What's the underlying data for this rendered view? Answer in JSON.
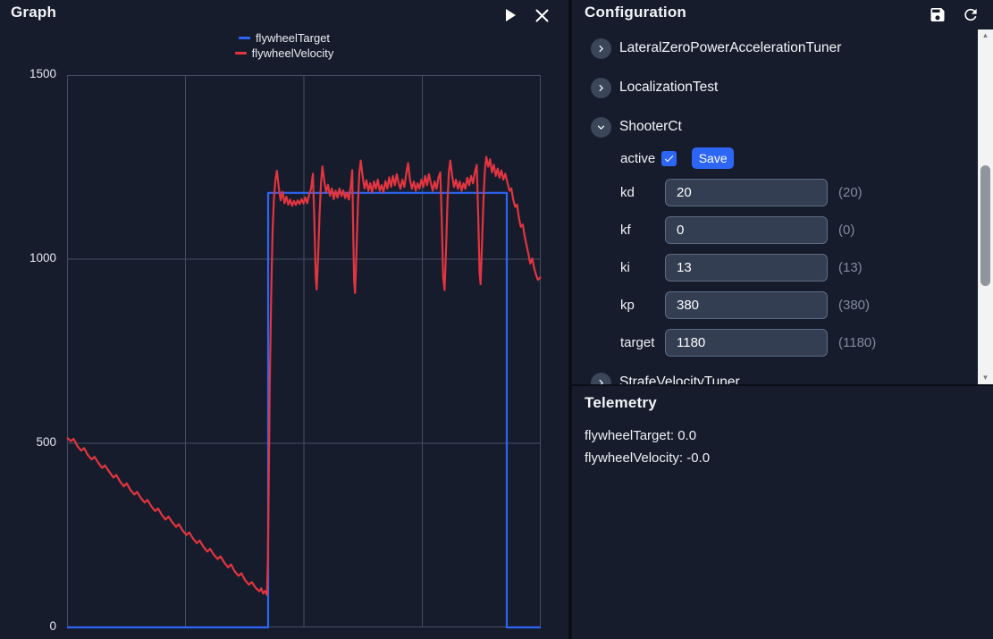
{
  "graph": {
    "title": "Graph",
    "y_tick_labels": [
      "1500",
      "1000",
      "500",
      "0"
    ]
  },
  "chart_data": {
    "type": "line",
    "title": "",
    "xlabel": "",
    "ylabel": "",
    "ylim": [
      0,
      1500
    ],
    "y_ticks": [
      0,
      500,
      1000,
      1500
    ],
    "grid": true,
    "legend_position": "top-center",
    "x_axis": "time (unlabeled, normalized 0-1)",
    "series": [
      {
        "name": "flywheelTarget",
        "color": "#2d66f5",
        "points": [
          [
            0,
            0
          ],
          [
            0.4245,
            0
          ],
          [
            0.4245,
            1180
          ],
          [
            0.9283,
            1180
          ],
          [
            0.9283,
            0
          ],
          [
            1,
            0
          ]
        ]
      },
      {
        "name": "flywheelVelocity",
        "color": "#e23540",
        "points": [
          [
            0.0,
            515
          ],
          [
            0.008,
            506
          ],
          [
            0.014,
            512
          ],
          [
            0.022,
            492
          ],
          [
            0.03,
            480
          ],
          [
            0.036,
            487
          ],
          [
            0.044,
            468
          ],
          [
            0.052,
            456
          ],
          [
            0.058,
            463
          ],
          [
            0.066,
            447
          ],
          [
            0.074,
            433
          ],
          [
            0.08,
            440
          ],
          [
            0.09,
            421
          ],
          [
            0.098,
            407
          ],
          [
            0.104,
            414
          ],
          [
            0.112,
            396
          ],
          [
            0.12,
            383
          ],
          [
            0.126,
            391
          ],
          [
            0.134,
            373
          ],
          [
            0.142,
            361
          ],
          [
            0.148,
            368
          ],
          [
            0.156,
            351
          ],
          [
            0.164,
            339
          ],
          [
            0.17,
            346
          ],
          [
            0.178,
            329
          ],
          [
            0.186,
            316
          ],
          [
            0.192,
            323
          ],
          [
            0.2,
            306
          ],
          [
            0.208,
            293
          ],
          [
            0.214,
            301
          ],
          [
            0.222,
            286
          ],
          [
            0.23,
            273
          ],
          [
            0.236,
            280
          ],
          [
            0.244,
            263
          ],
          [
            0.252,
            251
          ],
          [
            0.258,
            258
          ],
          [
            0.266,
            241
          ],
          [
            0.274,
            229
          ],
          [
            0.28,
            236
          ],
          [
            0.288,
            219
          ],
          [
            0.296,
            206
          ],
          [
            0.302,
            213
          ],
          [
            0.31,
            197
          ],
          [
            0.318,
            186
          ],
          [
            0.324,
            193
          ],
          [
            0.332,
            176
          ],
          [
            0.34,
            163
          ],
          [
            0.346,
            171
          ],
          [
            0.354,
            152
          ],
          [
            0.362,
            140
          ],
          [
            0.368,
            147
          ],
          [
            0.376,
            128
          ],
          [
            0.384,
            116
          ],
          [
            0.39,
            123
          ],
          [
            0.398,
            108
          ],
          [
            0.406,
            98
          ],
          [
            0.41,
            106
          ],
          [
            0.414,
            92
          ],
          [
            0.418,
            99
          ],
          [
            0.422,
            88
          ],
          [
            0.424,
            180
          ],
          [
            0.426,
            420
          ],
          [
            0.428,
            660
          ],
          [
            0.431,
            900
          ],
          [
            0.434,
            1080
          ],
          [
            0.437,
            1170
          ],
          [
            0.44,
            1215
          ],
          [
            0.443,
            1240
          ],
          [
            0.447,
            1195
          ],
          [
            0.451,
            1160
          ],
          [
            0.455,
            1183
          ],
          [
            0.459,
            1152
          ],
          [
            0.463,
            1170
          ],
          [
            0.467,
            1148
          ],
          [
            0.471,
            1162
          ],
          [
            0.475,
            1145
          ],
          [
            0.479,
            1158
          ],
          [
            0.483,
            1147
          ],
          [
            0.487,
            1160
          ],
          [
            0.491,
            1150
          ],
          [
            0.495,
            1163
          ],
          [
            0.499,
            1151
          ],
          [
            0.503,
            1168
          ],
          [
            0.507,
            1152
          ],
          [
            0.511,
            1175
          ],
          [
            0.515,
            1190
          ],
          [
            0.519,
            1232
          ],
          [
            0.522,
            1105
          ],
          [
            0.525,
            950
          ],
          [
            0.527,
            918
          ],
          [
            0.53,
            1005
          ],
          [
            0.533,
            1120
          ],
          [
            0.536,
            1205
          ],
          [
            0.539,
            1252
          ],
          [
            0.543,
            1212
          ],
          [
            0.547,
            1182
          ],
          [
            0.551,
            1202
          ],
          [
            0.555,
            1172
          ],
          [
            0.559,
            1192
          ],
          [
            0.563,
            1163
          ],
          [
            0.567,
            1186
          ],
          [
            0.571,
            1167
          ],
          [
            0.575,
            1192
          ],
          [
            0.579,
            1171
          ],
          [
            0.583,
            1187
          ],
          [
            0.587,
            1166
          ],
          [
            0.591,
            1181
          ],
          [
            0.595,
            1162
          ],
          [
            0.599,
            1198
          ],
          [
            0.602,
            1242
          ],
          [
            0.604,
            1085
          ],
          [
            0.606,
            942
          ],
          [
            0.608,
            908
          ],
          [
            0.611,
            1015
          ],
          [
            0.614,
            1145
          ],
          [
            0.617,
            1232
          ],
          [
            0.62,
            1268
          ],
          [
            0.624,
            1226
          ],
          [
            0.628,
            1192
          ],
          [
            0.632,
            1214
          ],
          [
            0.636,
            1186
          ],
          [
            0.64,
            1206
          ],
          [
            0.644,
            1181
          ],
          [
            0.648,
            1211
          ],
          [
            0.652,
            1191
          ],
          [
            0.656,
            1216
          ],
          [
            0.66,
            1186
          ],
          [
            0.664,
            1201
          ],
          [
            0.668,
            1182
          ],
          [
            0.672,
            1212
          ],
          [
            0.676,
            1192
          ],
          [
            0.68,
            1222
          ],
          [
            0.684,
            1196
          ],
          [
            0.688,
            1226
          ],
          [
            0.692,
            1201
          ],
          [
            0.696,
            1231
          ],
          [
            0.7,
            1206
          ],
          [
            0.704,
            1191
          ],
          [
            0.708,
            1216
          ],
          [
            0.712,
            1196
          ],
          [
            0.716,
            1232
          ],
          [
            0.72,
            1261
          ],
          [
            0.724,
            1216
          ],
          [
            0.728,
            1191
          ],
          [
            0.732,
            1211
          ],
          [
            0.736,
            1186
          ],
          [
            0.74,
            1206
          ],
          [
            0.744,
            1191
          ],
          [
            0.748,
            1216
          ],
          [
            0.752,
            1196
          ],
          [
            0.756,
            1226
          ],
          [
            0.76,
            1201
          ],
          [
            0.764,
            1231
          ],
          [
            0.768,
            1206
          ],
          [
            0.772,
            1186
          ],
          [
            0.776,
            1211
          ],
          [
            0.78,
            1191
          ],
          [
            0.784,
            1221
          ],
          [
            0.788,
            1236
          ],
          [
            0.791,
            1112
          ],
          [
            0.794,
            952
          ],
          [
            0.797,
            916
          ],
          [
            0.8,
            1022
          ],
          [
            0.803,
            1152
          ],
          [
            0.806,
            1236
          ],
          [
            0.809,
            1268
          ],
          [
            0.813,
            1226
          ],
          [
            0.817,
            1196
          ],
          [
            0.821,
            1216
          ],
          [
            0.825,
            1191
          ],
          [
            0.829,
            1211
          ],
          [
            0.833,
            1186
          ],
          [
            0.837,
            1206
          ],
          [
            0.841,
            1191
          ],
          [
            0.845,
            1221
          ],
          [
            0.849,
            1201
          ],
          [
            0.853,
            1226
          ],
          [
            0.857,
            1206
          ],
          [
            0.861,
            1236
          ],
          [
            0.865,
            1256
          ],
          [
            0.868,
            1122
          ],
          [
            0.871,
            962
          ],
          [
            0.873,
            932
          ],
          [
            0.876,
            1042
          ],
          [
            0.879,
            1162
          ],
          [
            0.882,
            1242
          ],
          [
            0.885,
            1278
          ],
          [
            0.889,
            1251
          ],
          [
            0.893,
            1271
          ],
          [
            0.897,
            1236
          ],
          [
            0.901,
            1256
          ],
          [
            0.905,
            1226
          ],
          [
            0.909,
            1246
          ],
          [
            0.913,
            1221
          ],
          [
            0.917,
            1241
          ],
          [
            0.921,
            1216
          ],
          [
            0.925,
            1232
          ],
          [
            0.93,
            1206
          ],
          [
            0.934,
            1186
          ],
          [
            0.938,
            1192
          ],
          [
            0.942,
            1161
          ],
          [
            0.946,
            1142
          ],
          [
            0.95,
            1148
          ],
          [
            0.954,
            1112
          ],
          [
            0.958,
            1088
          ],
          [
            0.962,
            1094
          ],
          [
            0.966,
            1062
          ],
          [
            0.97,
            1038
          ],
          [
            0.974,
            1014
          ],
          [
            0.978,
            988
          ],
          [
            0.982,
            1002
          ],
          [
            0.986,
            976
          ],
          [
            0.99,
            958
          ],
          [
            0.994,
            944
          ],
          [
            1.0,
            952
          ]
        ]
      }
    ]
  },
  "configuration": {
    "title": "Configuration",
    "groups": [
      {
        "label": "LateralZeroPowerAccelerationTuner",
        "expanded": false
      },
      {
        "label": "LocalizationTest",
        "expanded": false
      },
      {
        "label": "ShooterCt",
        "expanded": true,
        "active_label": "active",
        "active_checked": true,
        "save_label": "Save",
        "fields": [
          {
            "name": "kd",
            "value": "20",
            "default": "(20)"
          },
          {
            "name": "kf",
            "value": "0",
            "default": "(0)"
          },
          {
            "name": "ki",
            "value": "13",
            "default": "(13)"
          },
          {
            "name": "kp",
            "value": "380",
            "default": "(380)"
          },
          {
            "name": "target",
            "value": "1180",
            "default": "(1180)"
          }
        ]
      },
      {
        "label": "StrafeVelocityTuner",
        "expanded": false
      }
    ]
  },
  "telemetry": {
    "title": "Telemetry",
    "lines": [
      "flywheelTarget: 0.0",
      "flywheelVelocity: -0.0"
    ]
  }
}
